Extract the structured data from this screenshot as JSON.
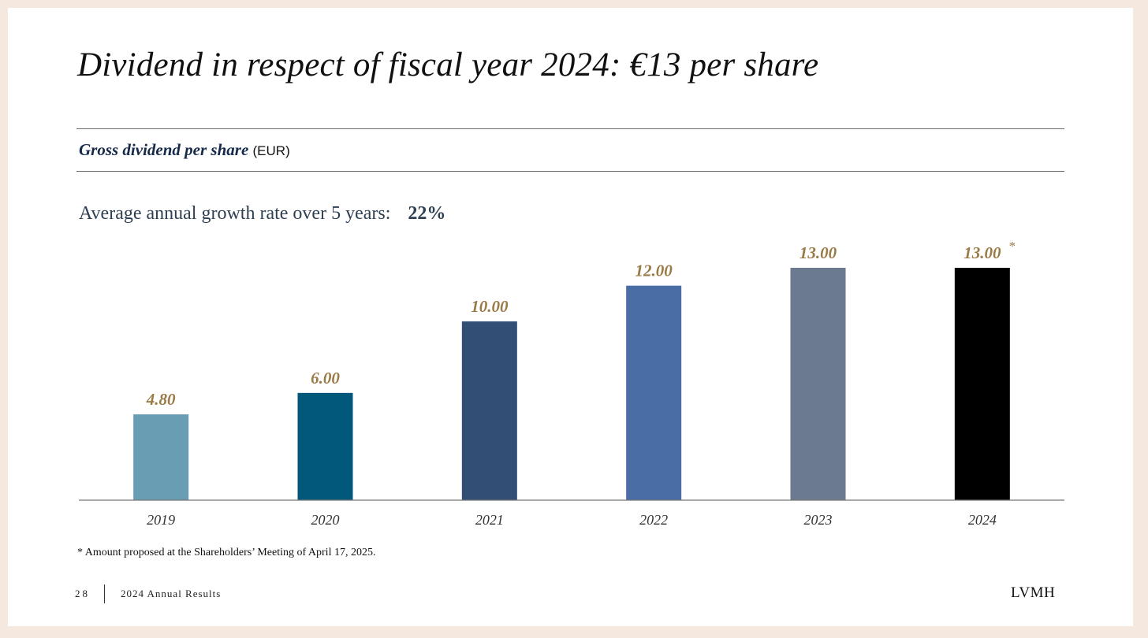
{
  "slide": {
    "title": "Dividend in respect of fiscal year 2024: €13 per share",
    "subtitle_main": "Gross dividend per share",
    "subtitle_unit": "(EUR)",
    "growth_label": "Average annual growth rate over 5 years:",
    "growth_value": "22%",
    "footnote": "* Amount proposed at the Shareholders’ Meeting of April 17, 2025.",
    "page_number": "28",
    "footer_text": "2024 Annual Results",
    "logo": "LVMH"
  },
  "colors": {
    "label": "#9a7a45",
    "axis": "#777777",
    "tick": "#333333"
  },
  "chart_data": {
    "type": "bar",
    "categories": [
      "2019",
      "2020",
      "2021",
      "2022",
      "2023",
      "2024"
    ],
    "values": [
      4.8,
      6.0,
      10.0,
      12.0,
      13.0,
      13.0
    ],
    "value_labels": [
      "4.80",
      "6.00",
      "10.00",
      "12.00",
      "13.00",
      "13.00"
    ],
    "markers": [
      "",
      "",
      "",
      "",
      "",
      "*"
    ],
    "bar_colors": [
      "#689db4",
      "#02587a",
      "#324e74",
      "#496da4",
      "#6b7a8e",
      "#000000"
    ],
    "ylim": [
      0,
      13
    ],
    "grid": false
  }
}
